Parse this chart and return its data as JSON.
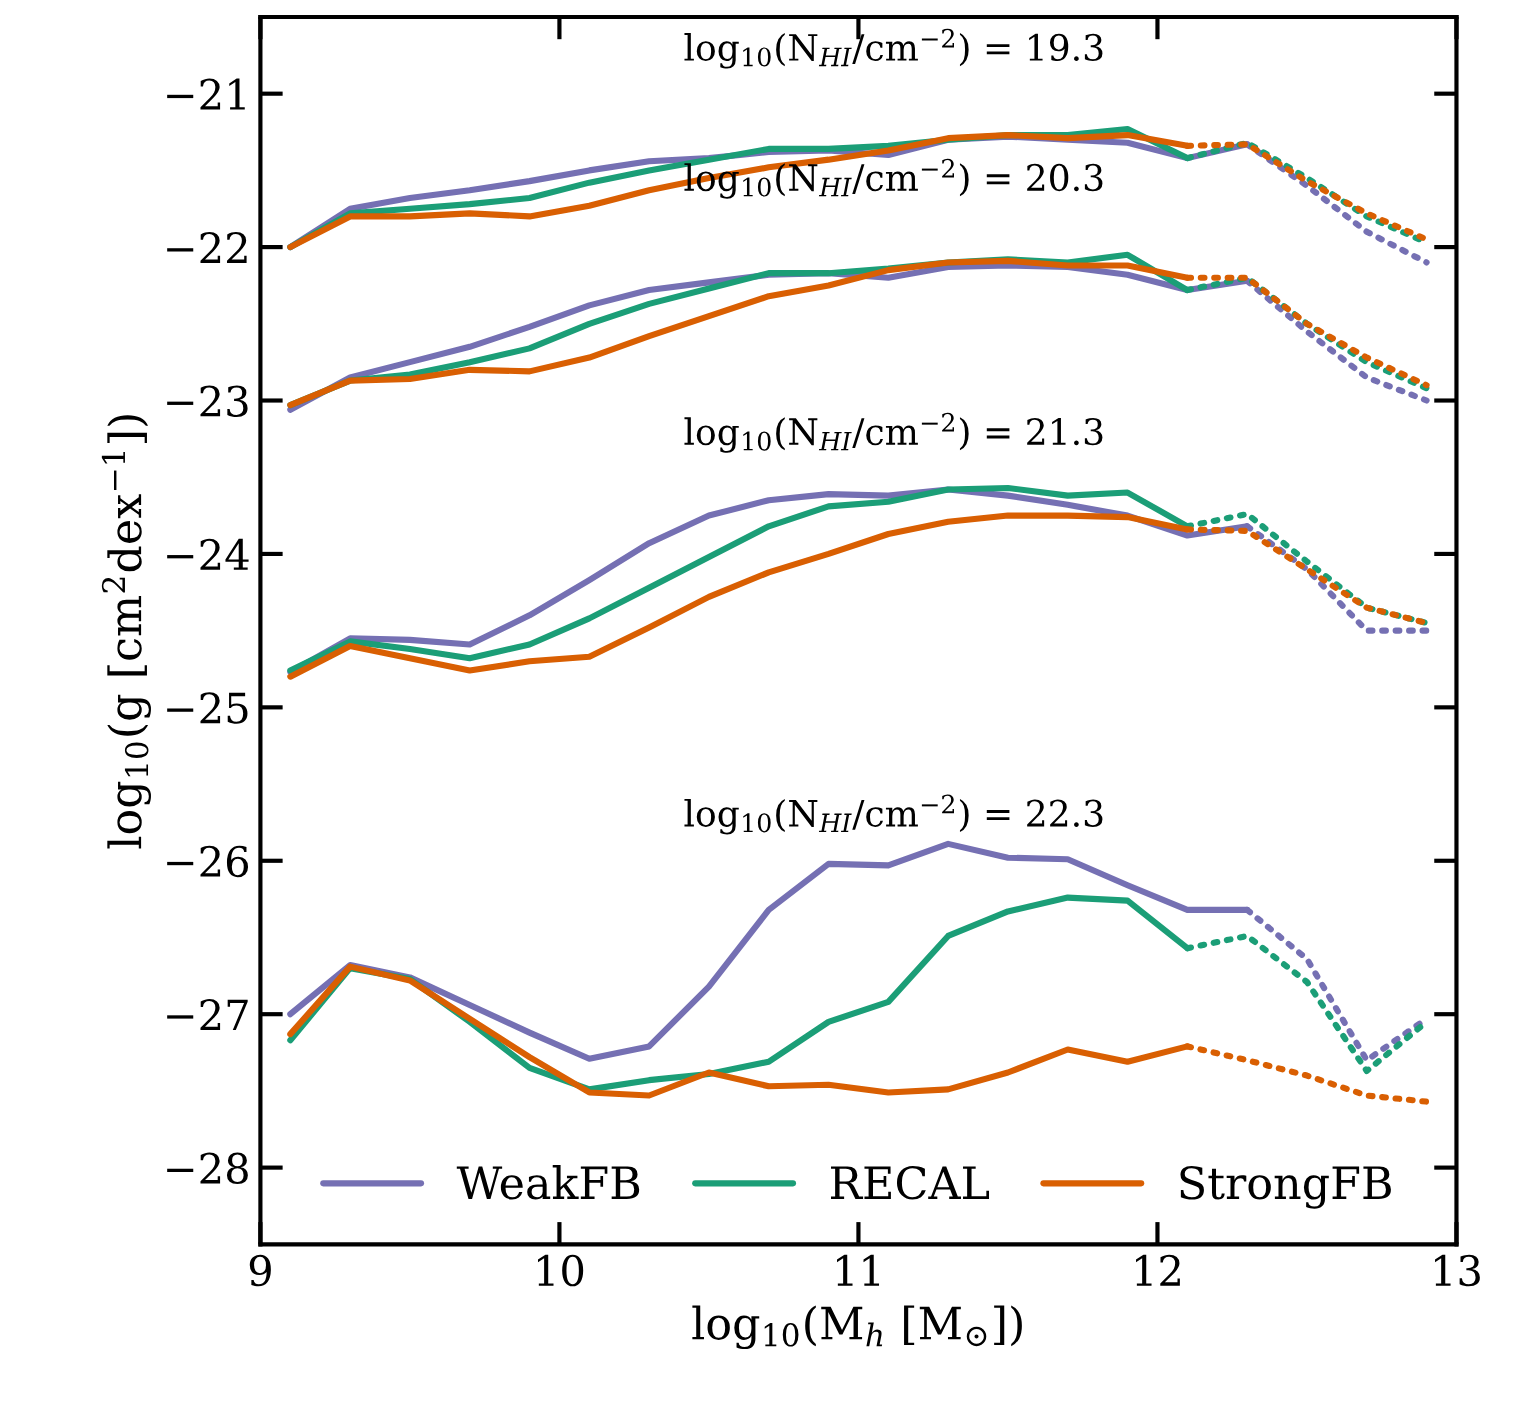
{
  "chart_data": {
    "type": "line",
    "xlabel": "log$_{10}$(M$_{h}$ [M$_{⊙}$])",
    "ylabel": "log$_{10}$(g [cm$^{2}$dex$^{−1}$])",
    "x": [
      9.1,
      9.3,
      9.5,
      9.7,
      9.9,
      10.1,
      10.3,
      10.5,
      10.7,
      10.9,
      11.1,
      11.3,
      11.5,
      11.7,
      11.9,
      12.1,
      12.3,
      12.5,
      12.7,
      12.9
    ],
    "xlim": [
      9,
      13
    ],
    "xticks": [
      9,
      10,
      11,
      12,
      13
    ],
    "ylim": [
      -28.5,
      -20.5
    ],
    "yticks": [
      {
        "value": -28,
        "label": "−28"
      },
      {
        "value": -27,
        "label": "−27"
      },
      {
        "value": -26,
        "label": "−26"
      },
      {
        "value": -25,
        "label": "−25"
      },
      {
        "value": -24,
        "label": "−24"
      },
      {
        "value": -23,
        "label": "−23"
      },
      {
        "value": -22,
        "label": "−22"
      },
      {
        "value": -21,
        "label": "−21"
      }
    ],
    "grid": false,
    "legend": "bottom",
    "marker": "none",
    "annotations": [
      "log$_{10}$(N$_{HI}$/cm$^{−2}$) = 19.3",
      "log$_{10}$(N$_{HI}$/cm$^{−2}$) = 20.3",
      "log$_{10}$(N$_{HI}$/cm$^{−2}$) = 21.3",
      "log$_{10}$(N$_{HI}$/cm$^{−2}$) = 22.3"
    ],
    "series": [
      {
        "name": "WeakFB",
        "color": "#7570b3",
        "line_style": "solid",
        "values": [
          -22.0,
          -21.75,
          -21.68,
          -21.63,
          -21.57,
          -21.5,
          -21.44,
          -21.42,
          -21.38,
          -21.37,
          -21.4,
          -21.3,
          -21.28,
          -21.3,
          -21.32,
          -21.42,
          -21.33,
          null,
          null,
          null
        ]
      },
      {
        "color": "#7570b3",
        "line_style": "dotted",
        "values": [
          null,
          null,
          null,
          null,
          null,
          null,
          null,
          null,
          null,
          null,
          null,
          null,
          null,
          null,
          null,
          null,
          -21.33,
          -21.6,
          -21.9,
          -22.1
        ]
      },
      {
        "name": "RECAL",
        "color": "#1b9e77",
        "line_style": "solid",
        "values": [
          -22.0,
          -21.78,
          -21.75,
          -21.72,
          -21.68,
          -21.58,
          -21.5,
          -21.43,
          -21.36,
          -21.36,
          -21.34,
          -21.3,
          -21.27,
          -21.27,
          -21.23,
          -21.42,
          null,
          null,
          null,
          null
        ]
      },
      {
        "color": "#1b9e77",
        "line_style": "dotted",
        "values": [
          null,
          null,
          null,
          null,
          null,
          null,
          null,
          null,
          null,
          null,
          null,
          null,
          null,
          null,
          null,
          -21.42,
          -21.32,
          -21.55,
          -21.8,
          -21.97
        ]
      },
      {
        "name": "StrongFB",
        "color": "#d95f02",
        "line_style": "solid",
        "values": [
          -22.0,
          -21.8,
          -21.8,
          -21.78,
          -21.8,
          -21.73,
          -21.63,
          -21.55,
          -21.48,
          -21.43,
          -21.37,
          -21.29,
          -21.27,
          -21.29,
          -21.27,
          -21.34,
          null,
          null,
          null,
          null
        ]
      },
      {
        "color": "#d95f02",
        "line_style": "dotted",
        "values": [
          null,
          null,
          null,
          null,
          null,
          null,
          null,
          null,
          null,
          null,
          null,
          null,
          null,
          null,
          null,
          -21.34,
          -21.33,
          -21.57,
          -21.78,
          -21.95
        ]
      },
      {
        "color": "#7570b3",
        "line_style": "solid",
        "values": [
          -23.06,
          -22.85,
          -22.75,
          -22.65,
          -22.52,
          -22.38,
          -22.28,
          -22.23,
          -22.18,
          -22.17,
          -22.2,
          -22.13,
          -22.12,
          -22.13,
          -22.18,
          -22.28,
          -22.22,
          null,
          null,
          null
        ]
      },
      {
        "color": "#7570b3",
        "line_style": "dotted",
        "values": [
          null,
          null,
          null,
          null,
          null,
          null,
          null,
          null,
          null,
          null,
          null,
          null,
          null,
          null,
          null,
          null,
          -22.22,
          -22.55,
          -22.85,
          -23.0
        ]
      },
      {
        "color": "#1b9e77",
        "line_style": "solid",
        "values": [
          -23.03,
          -22.87,
          -22.83,
          -22.75,
          -22.66,
          -22.5,
          -22.37,
          -22.27,
          -22.17,
          -22.17,
          -22.14,
          -22.1,
          -22.08,
          -22.1,
          -22.05,
          -22.28,
          null,
          null,
          null,
          null
        ]
      },
      {
        "color": "#1b9e77",
        "line_style": "dotted",
        "values": [
          null,
          null,
          null,
          null,
          null,
          null,
          null,
          null,
          null,
          null,
          null,
          null,
          null,
          null,
          null,
          -22.28,
          -22.2,
          -22.5,
          -22.75,
          -22.92
        ]
      },
      {
        "color": "#d95f02",
        "line_style": "solid",
        "values": [
          -23.03,
          -22.87,
          -22.86,
          -22.8,
          -22.81,
          -22.72,
          -22.58,
          -22.45,
          -22.32,
          -22.25,
          -22.15,
          -22.1,
          -22.09,
          -22.12,
          -22.12,
          -22.2,
          null,
          null,
          null,
          null
        ]
      },
      {
        "color": "#d95f02",
        "line_style": "dotted",
        "values": [
          null,
          null,
          null,
          null,
          null,
          null,
          null,
          null,
          null,
          null,
          null,
          null,
          null,
          null,
          null,
          -22.2,
          -22.2,
          -22.5,
          -22.72,
          -22.9
        ]
      },
      {
        "color": "#7570b3",
        "line_style": "solid",
        "values": [
          -24.77,
          -24.55,
          -24.56,
          -24.59,
          -24.4,
          -24.17,
          -23.93,
          -23.75,
          -23.65,
          -23.61,
          -23.62,
          -23.58,
          -23.62,
          -23.68,
          -23.75,
          -23.88,
          -23.82,
          null,
          null,
          null
        ]
      },
      {
        "color": "#7570b3",
        "line_style": "dotted",
        "values": [
          null,
          null,
          null,
          null,
          null,
          null,
          null,
          null,
          null,
          null,
          null,
          null,
          null,
          null,
          null,
          null,
          -23.82,
          -24.1,
          -24.5,
          -24.5
        ]
      },
      {
        "color": "#1b9e77",
        "line_style": "solid",
        "values": [
          -24.76,
          -24.57,
          -24.62,
          -24.68,
          -24.59,
          -24.42,
          -24.22,
          -24.02,
          -23.82,
          -23.69,
          -23.66,
          -23.58,
          -23.57,
          -23.62,
          -23.6,
          -23.82,
          null,
          null,
          null,
          null
        ]
      },
      {
        "color": "#1b9e77",
        "line_style": "dotted",
        "values": [
          null,
          null,
          null,
          null,
          null,
          null,
          null,
          null,
          null,
          null,
          null,
          null,
          null,
          null,
          null,
          -23.82,
          -23.74,
          -24.05,
          -24.35,
          -24.45
        ]
      },
      {
        "color": "#d95f02",
        "line_style": "solid",
        "values": [
          -24.8,
          -24.6,
          -24.68,
          -24.76,
          -24.7,
          -24.67,
          -24.48,
          -24.28,
          -24.12,
          -24.0,
          -23.87,
          -23.79,
          -23.75,
          -23.75,
          -23.76,
          -23.84,
          null,
          null,
          null,
          null
        ]
      },
      {
        "color": "#d95f02",
        "line_style": "dotted",
        "values": [
          null,
          null,
          null,
          null,
          null,
          null,
          null,
          null,
          null,
          null,
          null,
          null,
          null,
          null,
          null,
          -23.84,
          -23.85,
          -24.1,
          -24.35,
          -24.45
        ]
      },
      {
        "color": "#7570b3",
        "line_style": "solid",
        "values": [
          -27.0,
          -26.68,
          -26.76,
          -26.94,
          -27.12,
          -27.29,
          -27.21,
          -26.82,
          -26.32,
          -26.02,
          -26.03,
          -25.89,
          -25.98,
          -25.99,
          -26.16,
          -26.32,
          -26.32,
          null,
          null,
          null
        ]
      },
      {
        "color": "#7570b3",
        "line_style": "dotted",
        "values": [
          null,
          null,
          null,
          null,
          null,
          null,
          null,
          null,
          null,
          null,
          null,
          null,
          null,
          null,
          null,
          null,
          -26.32,
          -26.64,
          -27.3,
          -27.03
        ]
      },
      {
        "color": "#1b9e77",
        "line_style": "solid",
        "values": [
          -27.17,
          -26.7,
          -26.77,
          -27.05,
          -27.35,
          -27.49,
          -27.43,
          -27.39,
          -27.31,
          -27.05,
          -26.92,
          -26.49,
          -26.33,
          -26.24,
          -26.26,
          -26.57,
          null,
          null,
          null,
          null
        ]
      },
      {
        "color": "#1b9e77",
        "line_style": "dotted",
        "values": [
          null,
          null,
          null,
          null,
          null,
          null,
          null,
          null,
          null,
          null,
          null,
          null,
          null,
          null,
          null,
          -26.57,
          -26.49,
          -26.79,
          -27.37,
          -27.05
        ]
      },
      {
        "color": "#d95f02",
        "line_style": "solid",
        "values": [
          -27.13,
          -26.69,
          -26.78,
          -27.03,
          -27.28,
          -27.51,
          -27.53,
          -27.38,
          -27.47,
          -27.46,
          -27.51,
          -27.49,
          -27.38,
          -27.23,
          -27.31,
          -27.21,
          null,
          null,
          null,
          null
        ]
      },
      {
        "color": "#d95f02",
        "line_style": "dotted",
        "values": [
          null,
          null,
          null,
          null,
          null,
          null,
          null,
          null,
          null,
          null,
          null,
          null,
          null,
          null,
          null,
          -27.21,
          -27.3,
          -27.4,
          -27.53,
          -27.57
        ]
      }
    ]
  }
}
